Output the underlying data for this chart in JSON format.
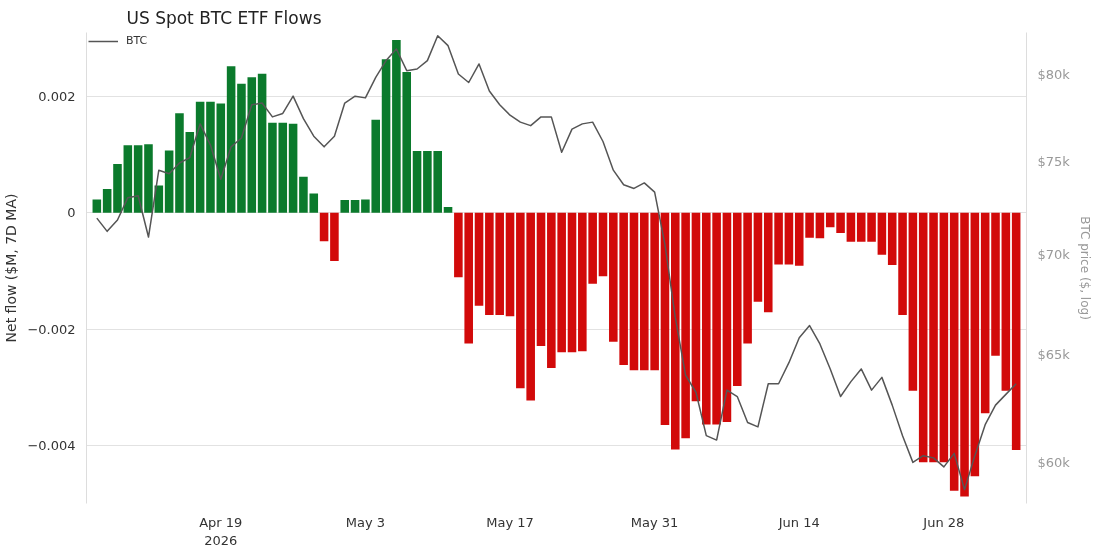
{
  "chart_data": {
    "type": "bar",
    "title": "US Spot BTC ETF Flows",
    "ylabel": "Net flow ($M, 7D MA)",
    "y2label": "BTC price ($, log)",
    "x": [
      "2026-04-07",
      "2026-04-08",
      "2026-04-09",
      "2026-04-10",
      "2026-04-11",
      "2026-04-12",
      "2026-04-13",
      "2026-04-14",
      "2026-04-15",
      "2026-04-16",
      "2026-04-17",
      "2026-04-18",
      "2026-04-19",
      "2026-04-20",
      "2026-04-21",
      "2026-04-22",
      "2026-04-23",
      "2026-04-24",
      "2026-04-25",
      "2026-04-26",
      "2026-04-27",
      "2026-04-28",
      "2026-04-29",
      "2026-04-30",
      "2026-05-01",
      "2026-05-02",
      "2026-05-03",
      "2026-05-04",
      "2026-05-05",
      "2026-05-06",
      "2026-05-07",
      "2026-05-08",
      "2026-05-09",
      "2026-05-10",
      "2026-05-11",
      "2026-05-12",
      "2026-05-13",
      "2026-05-14",
      "2026-05-15",
      "2026-05-16",
      "2026-05-17",
      "2026-05-18",
      "2026-05-19",
      "2026-05-20",
      "2026-05-21",
      "2026-05-22",
      "2026-05-23",
      "2026-05-24",
      "2026-05-25",
      "2026-05-26",
      "2026-05-27",
      "2026-05-28",
      "2026-05-29",
      "2026-05-30",
      "2026-05-31",
      "2026-06-01",
      "2026-06-02",
      "2026-06-03",
      "2026-06-04",
      "2026-06-05",
      "2026-06-06",
      "2026-06-07",
      "2026-06-08",
      "2026-06-09",
      "2026-06-10",
      "2026-06-11",
      "2026-06-12",
      "2026-06-13",
      "2026-06-14",
      "2026-06-15",
      "2026-06-16",
      "2026-06-17",
      "2026-06-18",
      "2026-06-19",
      "2026-06-20",
      "2026-06-21",
      "2026-06-22",
      "2026-06-23",
      "2026-06-24",
      "2026-06-25",
      "2026-06-26",
      "2026-06-27",
      "2026-06-28",
      "2026-06-29",
      "2026-06-30",
      "2026-07-01",
      "2026-07-02",
      "2026-07-03",
      "2026-07-04",
      "2026-07-05"
    ],
    "series": [
      {
        "values": [
          0.00023,
          0.00041,
          0.00084,
          0.00116,
          0.00116,
          0.00118,
          0.00047,
          0.00107,
          0.00171,
          0.00139,
          0.00191,
          0.00191,
          0.00188,
          0.00252,
          0.00222,
          0.00233,
          0.00239,
          0.00155,
          0.00155,
          0.00153,
          0.00062,
          0.00033,
          -0.00049,
          -0.00083,
          0.00022,
          0.00022,
          0.00023,
          0.0016,
          0.00264,
          0.00297,
          0.00242,
          0.00106,
          0.00106,
          0.00106,
          0.0001,
          -0.00111,
          -0.00225,
          -0.0016,
          -0.00176,
          -0.00176,
          -0.00178,
          -0.00302,
          -0.00323,
          -0.00229,
          -0.00267,
          -0.0024,
          -0.0024,
          -0.00238,
          -0.00122,
          -0.00109,
          -0.00222,
          -0.00262,
          -0.00271,
          -0.00271,
          -0.00271,
          -0.00365,
          -0.00407,
          -0.00388,
          -0.00324,
          -0.00364,
          -0.00364,
          -0.0036,
          -0.00298,
          -0.00225,
          -0.00153,
          -0.00171,
          -0.00089,
          -0.00089,
          -0.00091,
          -0.00043,
          -0.00044,
          -0.00025,
          -0.00035,
          -0.0005,
          -0.0005,
          -0.0005,
          -0.00072,
          -0.0009,
          -0.00176,
          -0.00306,
          -0.00429,
          -0.00429,
          -0.00429,
          -0.00478,
          -0.00488,
          -0.00453,
          -0.00345,
          -0.00246,
          -0.00306,
          -0.00408
        ],
        "colors": [
          "#0b7a2c",
          "#0b7a2c",
          "#0b7a2c",
          "#0b7a2c",
          "#0b7a2c",
          "#0b7a2c",
          "#0b7a2c",
          "#0b7a2c",
          "#0b7a2c",
          "#0b7a2c",
          "#0b7a2c",
          "#0b7a2c",
          "#0b7a2c",
          "#0b7a2c",
          "#0b7a2c",
          "#0b7a2c",
          "#0b7a2c",
          "#0b7a2c",
          "#0b7a2c",
          "#0b7a2c",
          "#0b7a2c",
          "#0b7a2c",
          "#d20a0a",
          "#d20a0a",
          "#0b7a2c",
          "#0b7a2c",
          "#0b7a2c",
          "#0b7a2c",
          "#0b7a2c",
          "#0b7a2c",
          "#0b7a2c",
          "#0b7a2c",
          "#0b7a2c",
          "#0b7a2c",
          "#0b7a2c",
          "#d20a0a",
          "#d20a0a",
          "#d20a0a",
          "#d20a0a",
          "#d20a0a",
          "#d20a0a",
          "#d20a0a",
          "#d20a0a",
          "#d20a0a",
          "#d20a0a",
          "#d20a0a",
          "#d20a0a",
          "#d20a0a",
          "#d20a0a",
          "#d20a0a",
          "#d20a0a",
          "#d20a0a",
          "#d20a0a",
          "#d20a0a",
          "#d20a0a",
          "#d20a0a",
          "#d20a0a",
          "#d20a0a",
          "#d20a0a",
          "#d20a0a",
          "#d20a0a",
          "#d20a0a",
          "#d20a0a",
          "#d20a0a",
          "#d20a0a",
          "#d20a0a",
          "#d20a0a",
          "#d20a0a",
          "#d20a0a",
          "#d20a0a",
          "#d20a0a",
          "#d20a0a",
          "#d20a0a",
          "#d20a0a",
          "#d20a0a",
          "#d20a0a",
          "#d20a0a",
          "#d20a0a",
          "#d20a0a",
          "#d20a0a",
          "#d20a0a",
          "#d20a0a",
          "#d20a0a",
          "#d20a0a",
          "#d20a0a",
          "#d20a0a",
          "#d20a0a",
          "#d20a0a",
          "#d20a0a",
          "#d20a0a"
        ]
      },
      {
        "type": "line",
        "name": "BTC",
        "color": "#555555",
        "axis": "y2",
        "values": [
          71900,
          71200,
          71800,
          73000,
          73100,
          70900,
          74500,
          74300,
          74900,
          75200,
          77100,
          75900,
          74000,
          75800,
          76300,
          78200,
          78300,
          77500,
          77700,
          78700,
          77400,
          76400,
          75800,
          76400,
          78300,
          78700,
          78600,
          79800,
          80800,
          81500,
          80200,
          80300,
          80800,
          82300,
          81700,
          80000,
          79500,
          80600,
          79000,
          78200,
          77600,
          77200,
          77000,
          77500,
          77500,
          75500,
          76800,
          77100,
          77200,
          76100,
          74500,
          73700,
          73500,
          73800,
          73300,
          70500,
          66800,
          64000,
          63200,
          61200,
          61000,
          63300,
          63000,
          61800,
          61600,
          63600,
          63600,
          64600,
          65800,
          66400,
          65500,
          64300,
          63000,
          63700,
          64300,
          63300,
          63900,
          62600,
          61200,
          60000,
          60300,
          60200,
          59800,
          60400,
          58800,
          60300,
          61700,
          62600,
          63100,
          63600
        ]
      }
    ],
    "xlim": [
      "2026-04-06",
      "2026-07-06"
    ],
    "xticks": [
      {
        "value": "2026-04-19",
        "label": "Apr 19\n2026"
      },
      {
        "value": "2026-05-03",
        "label": "May 3"
      },
      {
        "value": "2026-05-17",
        "label": "May 17"
      },
      {
        "value": "2026-05-31",
        "label": "May 31"
      },
      {
        "value": "2026-06-14",
        "label": "Jun 14"
      },
      {
        "value": "2026-06-28",
        "label": "Jun 28"
      }
    ],
    "ylim": [
      -0.005,
      0.0031
    ],
    "yticks": [
      -0.004,
      -0.002,
      0,
      0.002
    ],
    "y2lim": [
      58200,
      82500
    ],
    "y2ticks": [
      {
        "value": 60000,
        "label": "$60k"
      },
      {
        "value": 65000,
        "label": "$65k"
      },
      {
        "value": 70000,
        "label": "$70k"
      },
      {
        "value": 75000,
        "label": "$75k"
      },
      {
        "value": 80000,
        "label": "$80k"
      }
    ],
    "log": "y2",
    "grid": "y",
    "legend": "top left"
  }
}
